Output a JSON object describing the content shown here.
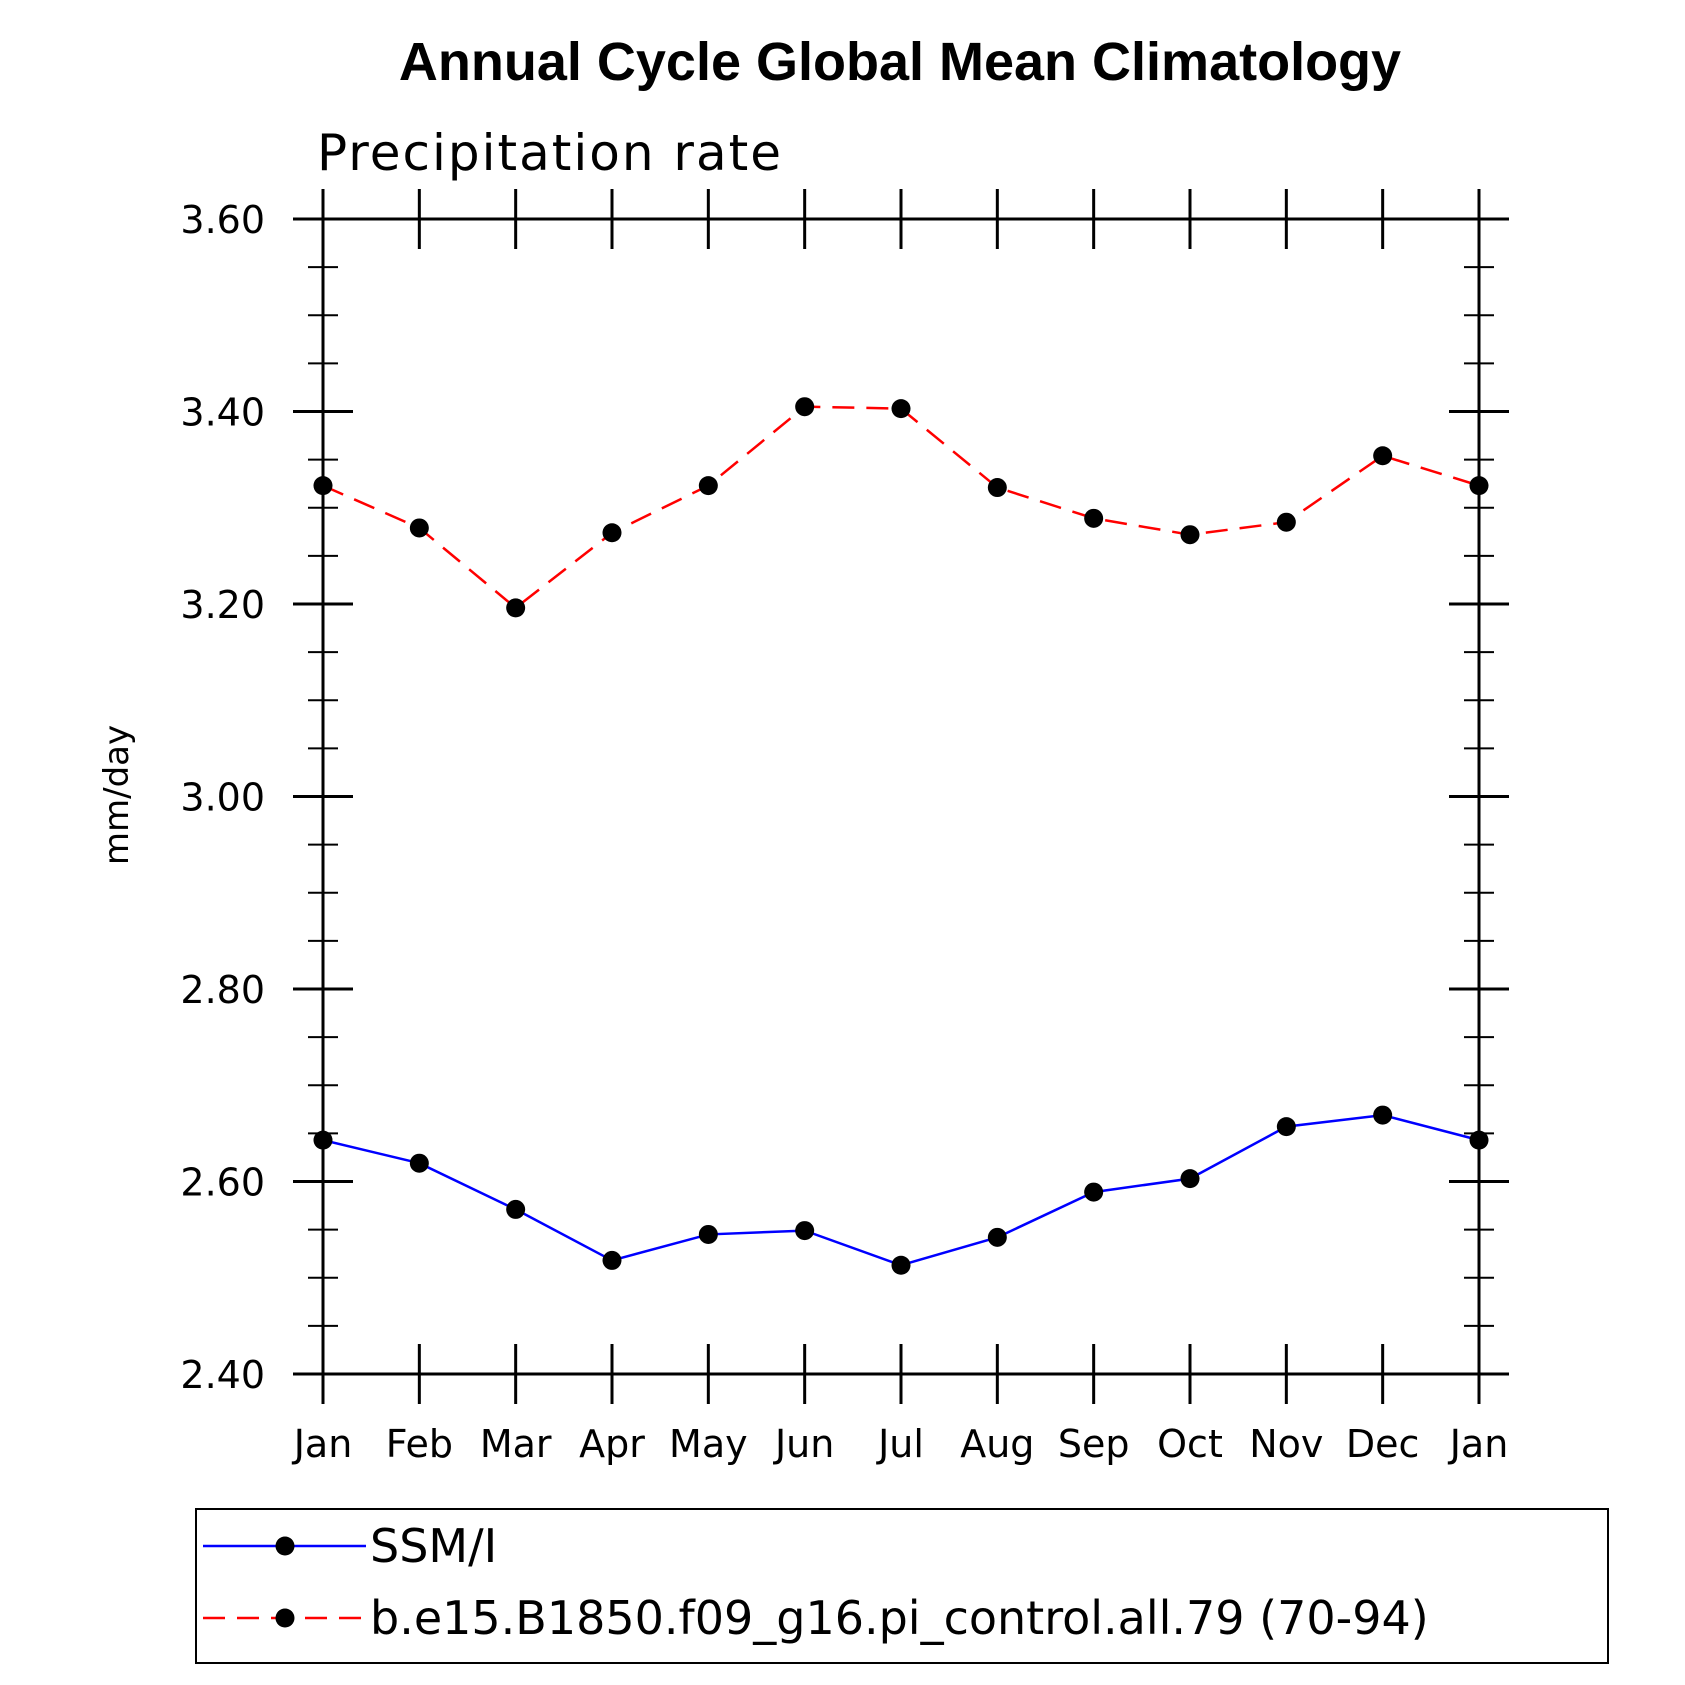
{
  "chart_data": {
    "type": "line",
    "title": "Annual Cycle Global Mean Climatology",
    "subtitle": "Precipitation rate",
    "xlabel": "",
    "ylabel": "mm/day",
    "categories": [
      "Jan",
      "Feb",
      "Mar",
      "Apr",
      "May",
      "Jun",
      "Jul",
      "Aug",
      "Sep",
      "Oct",
      "Nov",
      "Dec",
      "Jan"
    ],
    "ylim": [
      2.4,
      3.6
    ],
    "yticks": [
      "2.40",
      "2.60",
      "2.80",
      "3.00",
      "3.20",
      "3.40",
      "3.60"
    ],
    "grid": false,
    "legend_position": "bottom",
    "series": [
      {
        "name": "SSM/I",
        "color": "#0000ff",
        "style": "solid",
        "values": [
          2.643,
          2.619,
          2.571,
          2.518,
          2.545,
          2.549,
          2.513,
          2.542,
          2.589,
          2.603,
          2.657,
          2.669,
          2.643
        ]
      },
      {
        "name": "b.e15.B1850.f09_g16.pi_control.all.79 (70-94)",
        "color": "#ff0000",
        "style": "dashed",
        "values": [
          3.323,
          3.279,
          3.196,
          3.274,
          3.323,
          3.405,
          3.403,
          3.321,
          3.289,
          3.272,
          3.285,
          3.354,
          3.323
        ]
      }
    ]
  }
}
